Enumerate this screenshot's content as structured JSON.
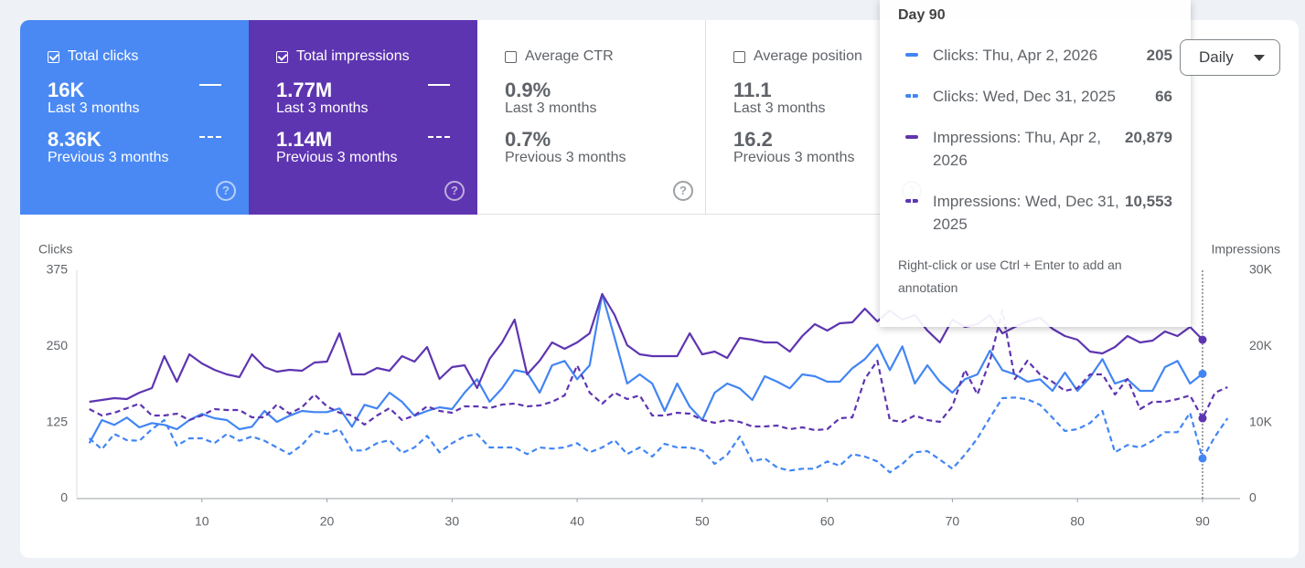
{
  "cards": [
    {
      "label": "Total clicks",
      "checked": true,
      "color": "#4a89f3",
      "current": "16K",
      "current_label": "Last 3 months",
      "previous": "8.36K",
      "previous_label": "Previous 3 months"
    },
    {
      "label": "Total impressions",
      "checked": true,
      "color": "#5e35b1",
      "current": "1.77M",
      "current_label": "Last 3 months",
      "previous": "1.14M",
      "previous_label": "Previous 3 months"
    },
    {
      "label": "Average CTR",
      "checked": false,
      "color": "#ffffff",
      "current": "0.9%",
      "current_label": "Last 3 months",
      "previous": "0.7%",
      "previous_label": "Previous 3 months"
    },
    {
      "label": "Average position",
      "checked": false,
      "color": "#ffffff",
      "current": "11.1",
      "current_label": "Last 3 months",
      "previous": "16.2",
      "previous_label": "Previous 3 months"
    }
  ],
  "dropdown": "Daily",
  "tooltip": {
    "title": "Day 90",
    "entries": [
      {
        "text": "Clicks: Thu, Apr 2, 2026",
        "value": "205",
        "color": "#4285f4",
        "dashed": false
      },
      {
        "text": "Clicks: Wed, Dec 31, 2025",
        "value": "66",
        "color": "#4285f4",
        "dashed": true
      },
      {
        "text": "Impressions: Thu, Apr 2, 2026",
        "value": "20,879",
        "color": "#5e35b1",
        "dashed": false
      },
      {
        "text": "Impressions: Wed, Dec 31, 2025",
        "value": "10,553",
        "color": "#5e35b1",
        "dashed": true
      }
    ],
    "note": "Right-click or use Ctrl + Enter to add an annotation"
  },
  "chart_data": {
    "type": "line",
    "y_label": "Clicks",
    "y2_label": "Impressions",
    "x": [
      1,
      2,
      3,
      4,
      5,
      6,
      7,
      8,
      9,
      10,
      11,
      12,
      13,
      14,
      15,
      16,
      17,
      18,
      19,
      20,
      21,
      22,
      23,
      24,
      25,
      26,
      27,
      28,
      29,
      30,
      31,
      32,
      33,
      34,
      35,
      36,
      37,
      38,
      39,
      40,
      41,
      42,
      43,
      44,
      45,
      46,
      47,
      48,
      49,
      50,
      51,
      52,
      53,
      54,
      55,
      56,
      57,
      58,
      59,
      60,
      61,
      62,
      63,
      64,
      65,
      66,
      67,
      68,
      69,
      70,
      71,
      72,
      73,
      74,
      75,
      76,
      77,
      78,
      79,
      80,
      81,
      82,
      83,
      84,
      85,
      86,
      87,
      88,
      89,
      90,
      91,
      92
    ],
    "xlim": [
      0,
      93
    ],
    "xticks": [
      10,
      20,
      30,
      40,
      50,
      60,
      70,
      80,
      90
    ],
    "ylim": [
      0,
      375
    ],
    "yticks": [
      0,
      125,
      250,
      375
    ],
    "y2lim": [
      0,
      30000
    ],
    "y2ticks": [
      0,
      {
        "value": 10000,
        "label": "10K"
      },
      {
        "value": 20000,
        "label": "20K"
      },
      {
        "value": 30000,
        "label": "30K"
      }
    ],
    "hover_x": 90,
    "grid": false,
    "series": [
      {
        "color": "#4285f4",
        "dashed": false,
        "axis": "y",
        "values": [
          91,
          129,
          121,
          133,
          117,
          124,
          121,
          114,
          129,
          139,
          132,
          129,
          114,
          118,
          144,
          126,
          136,
          144,
          142,
          142,
          148,
          118,
          154,
          148,
          174,
          159,
          136,
          144,
          150,
          147,
          174,
          196,
          159,
          181,
          211,
          207,
          174,
          219,
          226,
          196,
          219,
          336,
          264,
          189,
          204,
          189,
          144,
          189,
          151,
          129,
          174,
          189,
          181,
          162,
          201,
          192,
          181,
          204,
          201,
          192,
          192,
          214,
          229,
          253,
          211,
          250,
          189,
          219,
          192,
          174,
          196,
          204,
          243,
          211,
          204,
          192,
          196,
          177,
          207,
          177,
          199,
          229,
          189,
          196,
          177,
          177,
          216,
          226,
          189,
          205,
          null,
          null
        ]
      },
      {
        "color": "#4285f4",
        "dashed": true,
        "axis": "y",
        "values": [
          99,
          81,
          106,
          96,
          95,
          114,
          129,
          87,
          99,
          99,
          91,
          106,
          95,
          102,
          95,
          84,
          73,
          88,
          111,
          106,
          114,
          79,
          79,
          91,
          96,
          75,
          84,
          103,
          76,
          91,
          102,
          106,
          84,
          84,
          84,
          73,
          84,
          82,
          84,
          91,
          76,
          84,
          96,
          73,
          84,
          69,
          90,
          84,
          84,
          79,
          57,
          72,
          102,
          61,
          66,
          51,
          46,
          49,
          49,
          61,
          54,
          73,
          69,
          61,
          43,
          57,
          76,
          78,
          64,
          49,
          72,
          99,
          133,
          165,
          166,
          163,
          154,
          133,
          111,
          114,
          124,
          144,
          76,
          88,
          84,
          95,
          109,
          109,
          141,
          66,
          102,
          132
        ]
      },
      {
        "color": "#5e35b1",
        "dashed": false,
        "axis": "y2",
        "values": [
          12720,
          12960,
          13200,
          13080,
          13920,
          14520,
          18720,
          15360,
          18960,
          17760,
          16920,
          16320,
          15960,
          18960,
          17280,
          16680,
          16920,
          16800,
          17880,
          18000,
          21720,
          16320,
          16320,
          17160,
          16800,
          18720,
          18000,
          19920,
          15720,
          17280,
          17520,
          14520,
          18360,
          20520,
          23520,
          16320,
          18120,
          20520,
          19680,
          20520,
          21720,
          26880,
          24120,
          20160,
          18960,
          18720,
          18720,
          18720,
          21720,
          18960,
          19320,
          18480,
          21120,
          20880,
          20520,
          20520,
          19320,
          21360,
          22920,
          22080,
          23040,
          23160,
          24960,
          23280,
          24720,
          23520,
          24120,
          22080,
          20520,
          23520,
          22560,
          22920,
          24120,
          21720,
          22560,
          23280,
          23760,
          22320,
          21360,
          20880,
          19320,
          19080,
          19920,
          21360,
          20520,
          20760,
          21960,
          21360,
          22560,
          20879,
          null,
          null
        ]
      },
      {
        "color": "#5e35b1",
        "dashed": true,
        "axis": "y2",
        "values": [
          11760,
          10920,
          11280,
          11880,
          12480,
          10920,
          10920,
          11160,
          10320,
          10920,
          11760,
          11640,
          11640,
          10680,
          10680,
          12360,
          11160,
          12000,
          13680,
          12120,
          11280,
          10920,
          9720,
          10920,
          11880,
          10320,
          10920,
          12120,
          11520,
          11280,
          12120,
          12120,
          11880,
          12360,
          12480,
          12120,
          12240,
          12720,
          13560,
          17520,
          13920,
          12480,
          13920,
          13080,
          13560,
          10920,
          10920,
          11280,
          11160,
          10320,
          9960,
          10320,
          10080,
          9480,
          9480,
          9600,
          9120,
          9360,
          9000,
          9120,
          10560,
          10680,
          15720,
          18120,
          10320,
          10080,
          10920,
          10320,
          10080,
          12120,
          16920,
          13680,
          18120,
          24720,
          15720,
          18120,
          16320,
          15360,
          14160,
          14520,
          16320,
          16320,
          13680,
          15720,
          11760,
          12720,
          12720,
          13080,
          13560,
          10553,
          13920,
          14640
        ]
      }
    ]
  }
}
